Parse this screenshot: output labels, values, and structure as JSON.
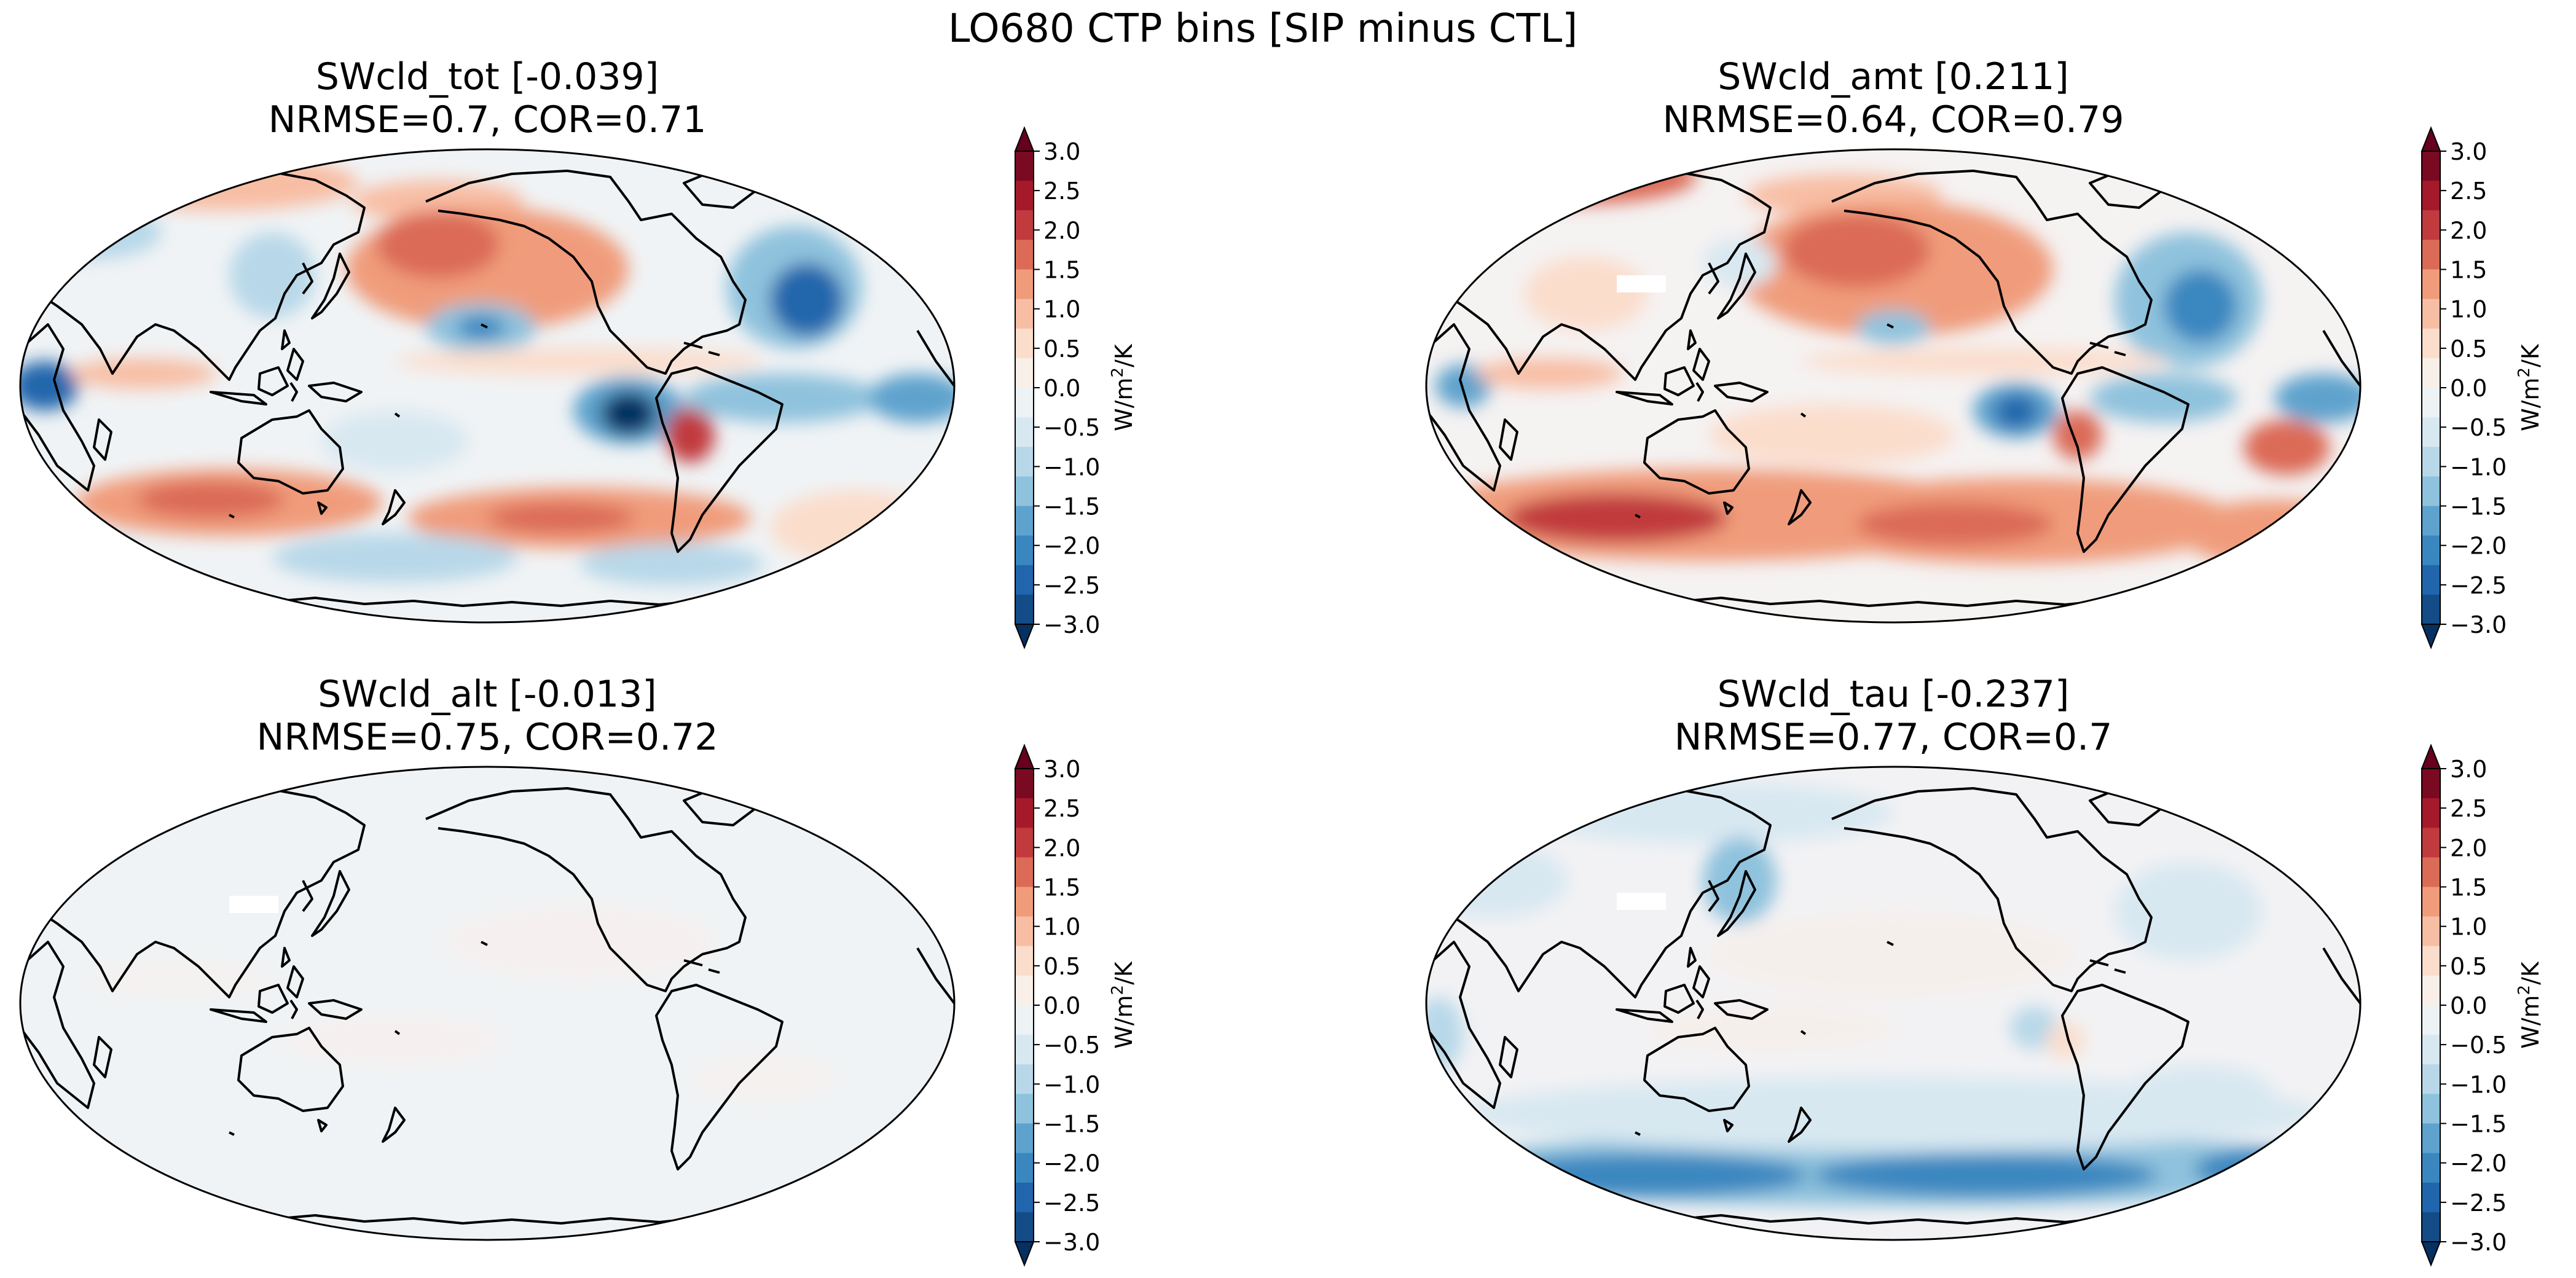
{
  "figure": {
    "suptitle": "LO680 CTP bins [SIP minus CTL]"
  },
  "colorbar": {
    "ticks": [
      "3.0",
      "2.5",
      "2.0",
      "1.5",
      "1.0",
      "0.5",
      "0.0",
      "−0.5",
      "−1.0",
      "−1.5",
      "−2.0",
      "−2.5",
      "−3.0"
    ],
    "unit_base": "W/m",
    "unit_sup": "2",
    "unit_tail": "/K",
    "colors": [
      "#053061",
      "#134c87",
      "#2166ac",
      "#3a87c0",
      "#5ea3cd",
      "#8fc2dd",
      "#b8d8e9",
      "#d8e8f1",
      "#edf2f5",
      "#f9efe9",
      "#fbddcc",
      "#f8bea4",
      "#f09c7b",
      "#db6b57",
      "#c13a3e",
      "#a51a2b",
      "#7a0a22",
      "#67001f"
    ],
    "neutral": "#f0f3f5"
  },
  "panels": [
    {
      "title": "SWcld_tot [-0.039]",
      "stats": "NRMSE=0.7, COR=0.71"
    },
    {
      "title": "SWcld_amt [0.211]",
      "stats": "NRMSE=0.64, COR=0.79"
    },
    {
      "title": "SWcld_alt [-0.013]",
      "stats": "NRMSE=0.75, COR=0.72"
    },
    {
      "title": "SWcld_tau [-0.237]",
      "stats": "NRMSE=0.77, COR=0.7"
    }
  ]
}
